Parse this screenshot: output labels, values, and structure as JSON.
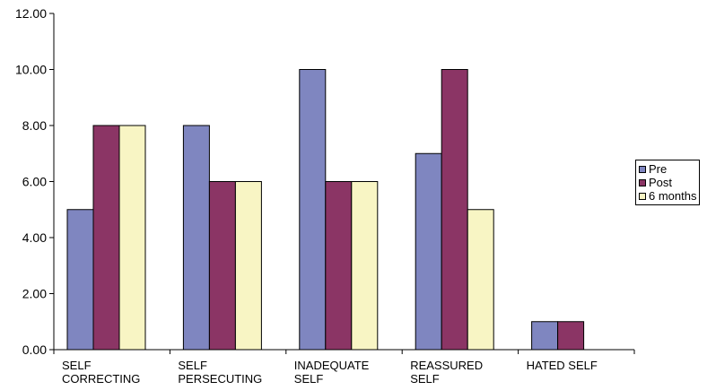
{
  "chart_data": {
    "type": "bar",
    "categories": [
      [
        "SELF",
        "CORRECTING"
      ],
      [
        "SELF",
        "PERSECUTING"
      ],
      [
        "INADEQUATE",
        "SELF"
      ],
      [
        "REASSURED",
        "SELF"
      ],
      [
        "HATED SELF"
      ]
    ],
    "series": [
      {
        "name": "Pre",
        "color": "#7f86c0",
        "values": [
          5,
          8,
          10,
          7,
          1
        ]
      },
      {
        "name": "Post",
        "color": "#8b3565",
        "values": [
          8,
          6,
          6,
          10,
          1
        ]
      },
      {
        "name": "6 months",
        "color": "#f8f5c4",
        "values": [
          8,
          6,
          6,
          5,
          0
        ]
      }
    ],
    "yticks": [
      "0.00",
      "2.00",
      "4.00",
      "6.00",
      "8.00",
      "10.00",
      "12.00"
    ],
    "ylim": [
      0,
      12
    ],
    "grid": false,
    "legend_position": "right"
  }
}
